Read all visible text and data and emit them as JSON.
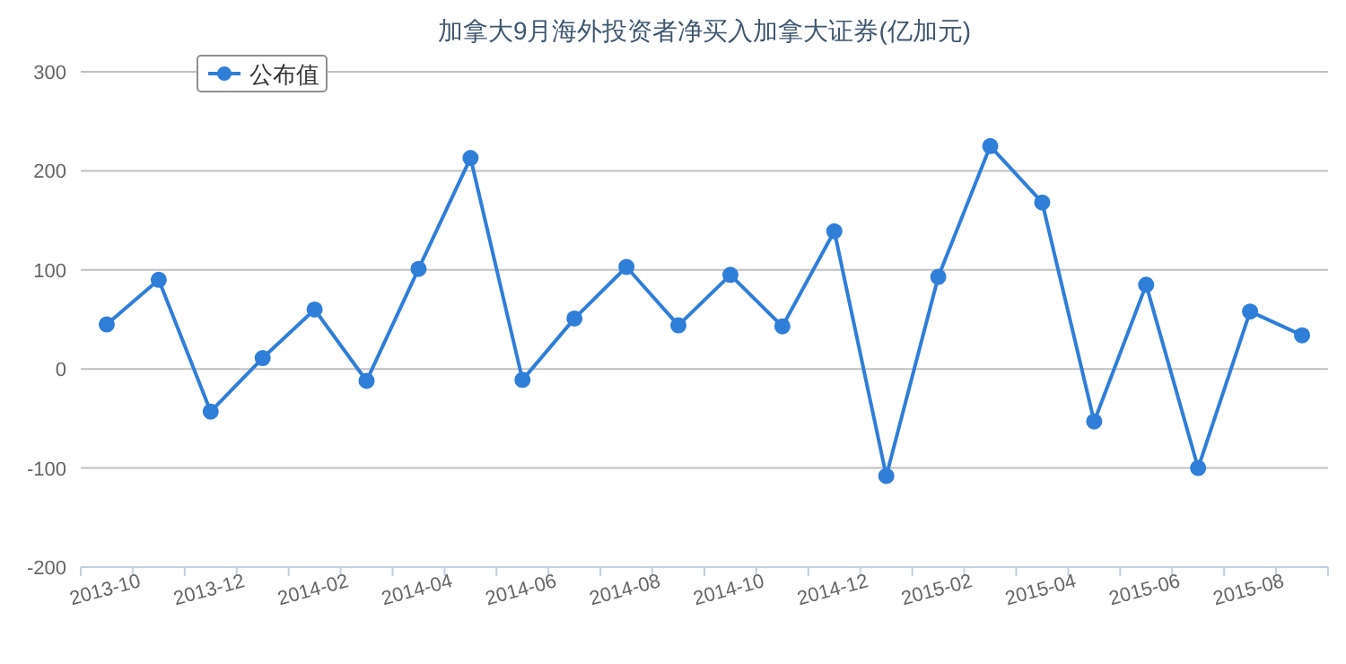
{
  "chart_data": {
    "type": "line",
    "title": "加拿大9月海外投资者净买入加拿大证券(亿加元)",
    "categories": [
      "2013-10",
      null,
      "2013-12",
      null,
      "2014-02",
      null,
      "2014-04",
      null,
      "2014-06",
      null,
      "2014-08",
      null,
      "2014-10",
      null,
      "2014-12",
      null,
      "2015-02",
      null,
      "2015-04",
      null,
      "2015-06",
      null,
      "2015-08",
      null
    ],
    "series": [
      {
        "name": "公布值",
        "color": "#2f7ed8",
        "values": [
          45,
          90,
          -43,
          11,
          60,
          -12,
          101,
          213,
          -11,
          51,
          103,
          44,
          95,
          43,
          139,
          -108,
          93,
          225,
          168,
          -53,
          85,
          -100,
          58,
          34
        ]
      }
    ],
    "ylim": [
      -200,
      300
    ],
    "yticks": [
      -200,
      -100,
      0,
      100,
      200,
      300
    ],
    "grid": "y",
    "legend": "top left",
    "marker": "circle",
    "line_style": "solid"
  }
}
